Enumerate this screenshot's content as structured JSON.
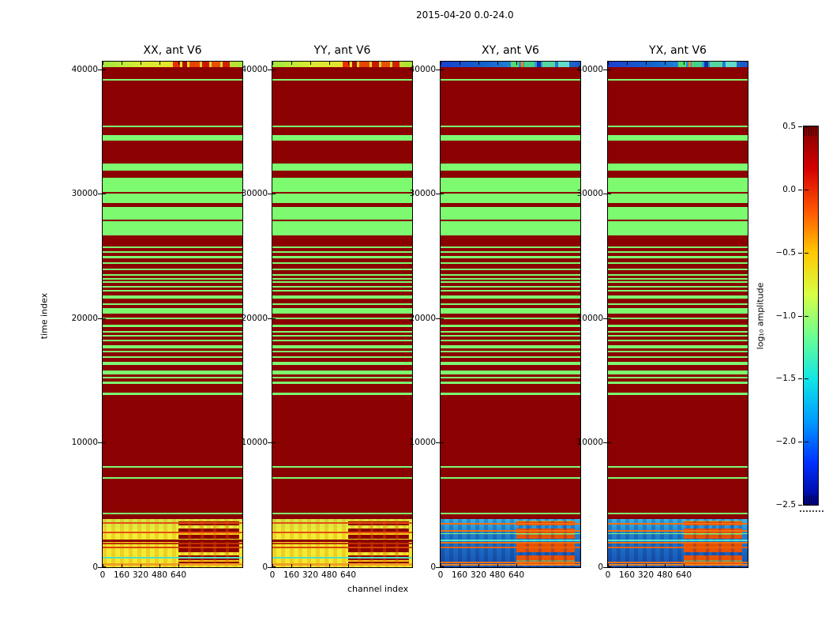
{
  "chart_data": {
    "type": "heatmap",
    "title": "2015-04-20 0.0-24.0",
    "xlabel": "channel index",
    "ylabel": "time index",
    "colormap": "jet",
    "colorbar_label": "log₁₀ amplitude",
    "colorbar_ticks": [
      "0.5",
      "0.0",
      "−0.5",
      "−1.0",
      "−1.5",
      "−2.0",
      "−2.5"
    ],
    "clim": [
      -2.5,
      0.5
    ],
    "x_ticks": [
      0,
      160,
      320,
      480,
      640
    ],
    "y_ticks": [
      40000,
      30000,
      20000,
      10000,
      0
    ],
    "x_range": [
      0,
      1180
    ],
    "y_range": [
      0,
      40634
    ],
    "panels": [
      {
        "title": "XX, ant V6",
        "scheme": "warm"
      },
      {
        "title": "YY, ant V6",
        "scheme": "warm"
      },
      {
        "title": "XY, ant V6",
        "scheme": "cool"
      },
      {
        "title": "YX, ant V6",
        "scheme": "cool"
      }
    ],
    "palette": {
      "flag_red": "#8b0000",
      "ok_green": "#7dfa70",
      "jet_top_to_bottom": [
        "#800000",
        "#d40000",
        "#ff5400",
        "#ffc800",
        "#d8ff45",
        "#6bff92",
        "#12e6e6",
        "#009cff",
        "#0030ff",
        "#000089"
      ]
    },
    "green_bands": [
      [
        22,
        1.5
      ],
      [
        81,
        1.5
      ],
      [
        93,
        7
      ],
      [
        129,
        9
      ],
      [
        147,
        18
      ],
      [
        166.5,
        12.5
      ],
      [
        184,
        16
      ],
      [
        201.5,
        18.5
      ],
      [
        234,
        2
      ],
      [
        240,
        2
      ],
      [
        246,
        3
      ],
      [
        254,
        2
      ],
      [
        262,
        2
      ],
      [
        269,
        2
      ],
      [
        274,
        1.5
      ],
      [
        278,
        1.5
      ],
      [
        284,
        1.5
      ],
      [
        289,
        2
      ],
      [
        296,
        4
      ],
      [
        306,
        2
      ],
      [
        312,
        7
      ],
      [
        324,
        2
      ],
      [
        333,
        3
      ],
      [
        341,
        2
      ],
      [
        346,
        2
      ],
      [
        352,
        2
      ],
      [
        359,
        4
      ],
      [
        366,
        2
      ],
      [
        373,
        2
      ],
      [
        380,
        4
      ],
      [
        391,
        5
      ],
      [
        399,
        2
      ],
      [
        405,
        3
      ],
      [
        419,
        3
      ],
      [
        512,
        1.5
      ],
      [
        526,
        1.5
      ],
      [
        571,
        1.5
      ]
    ],
    "top_strip_h": 7,
    "bottom_region": {
      "y": 579,
      "h": 61
    },
    "schemes": {
      "warm": {
        "top_base": [
          "#9fe83e",
          "#d6ea33",
          "#e8e42c",
          "#eecf25",
          "#a8e838"
        ],
        "top_patches": [
          {
            "x": 0.5,
            "w": 0.055,
            "c": "#e63000"
          },
          {
            "x": 0.57,
            "w": 0.035,
            "c": "#b01000"
          },
          {
            "x": 0.62,
            "w": 0.075,
            "c": "#e64400"
          },
          {
            "x": 0.71,
            "w": 0.05,
            "c": "#c81800"
          },
          {
            "x": 0.78,
            "w": 0.06,
            "c": "#e65000"
          },
          {
            "x": 0.86,
            "w": 0.05,
            "c": "#d22000"
          }
        ],
        "bot_base": [
          "#cfe94a",
          "#f1ef33",
          "#efe92e"
        ],
        "bot_vstripe": "rgba(240,130,10,0.28)",
        "bot_lines": [
          {
            "y": 4,
            "h": 1.5,
            "c": "#e05010"
          },
          {
            "y": 16,
            "h": 1.5,
            "c": "#e05010"
          },
          {
            "y": 26,
            "h": 3,
            "c": "#8b0000"
          },
          {
            "y": 30,
            "h": 1.5,
            "c": "#c03000"
          },
          {
            "y": 35,
            "h": 1.5,
            "c": "#d84800"
          },
          {
            "y": 48,
            "h": 2,
            "c": "#52e0c0"
          },
          {
            "y": 56,
            "h": 3,
            "c": "#f0a020"
          }
        ],
        "blocks": {
          "x": 0.54,
          "w": 0.44,
          "a": "#8b0000",
          "b": "rgba(255,170,0,0.55)",
          "bg": "rgba(235,90,0,0.35)"
        }
      },
      "cool": {
        "top_base": [
          "#1b3fd0",
          "#1565cc",
          "#2b9fdc",
          "#1b55c8"
        ],
        "top_patches": [
          {
            "x": 0.5,
            "w": 0.06,
            "c": "#57d973"
          },
          {
            "x": 0.575,
            "w": 0.02,
            "c": "#ee8800"
          },
          {
            "x": 0.6,
            "w": 0.07,
            "c": "#49cf8a"
          },
          {
            "x": 0.69,
            "w": 0.03,
            "c": "#1233aa"
          },
          {
            "x": 0.73,
            "w": 0.09,
            "c": "#55d6a0"
          },
          {
            "x": 0.84,
            "w": 0.08,
            "c": "#62dcc8"
          }
        ],
        "bot_base": [
          "#38b6e8",
          "#2382d2",
          "#1550b4"
        ],
        "bot_vstripe": "rgba(6,20,90,0.22)",
        "bot_lines": [
          {
            "y": 5,
            "h": 1.5,
            "c": "#f07010"
          },
          {
            "y": 14,
            "h": 1.5,
            "c": "#f07010"
          },
          {
            "y": 18,
            "h": 1,
            "c": "#7dfa70"
          },
          {
            "y": 26,
            "h": 1.5,
            "c": "#49e6d2"
          },
          {
            "y": 29,
            "h": 1.5,
            "c": "#f07010"
          },
          {
            "y": 35,
            "h": 1.5,
            "c": "#e86008"
          },
          {
            "y": 54,
            "h": 1.5,
            "c": "#f07010"
          },
          {
            "y": 57,
            "h": 1.5,
            "c": "#f08820"
          }
        ],
        "blocks": {
          "x": 0.54,
          "w": 0.42,
          "a": "#e85200",
          "b": "rgba(255,220,0,0.5)",
          "bg": "rgba(20,40,140,0.25)"
        }
      }
    }
  }
}
